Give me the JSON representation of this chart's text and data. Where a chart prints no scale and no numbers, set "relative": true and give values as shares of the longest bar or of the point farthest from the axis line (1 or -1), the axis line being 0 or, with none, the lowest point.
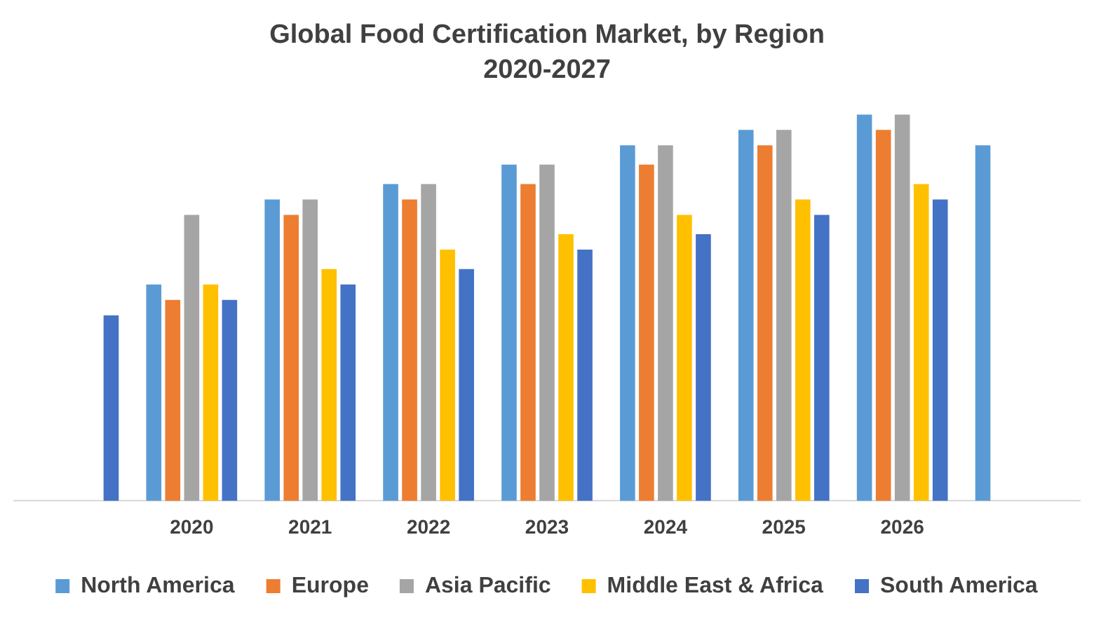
{
  "chart_data": {
    "type": "bar",
    "title": "Global Food Certification Market, by Region",
    "subtitle": "2020-2027",
    "relative": true,
    "categories": [
      null,
      "2020",
      "2021",
      "2022",
      "2023",
      "2024",
      "2025",
      "2026",
      null
    ],
    "grid": false,
    "legend": "bottom",
    "series": [
      {
        "name": "North America",
        "color": "#5b9bd5",
        "values": [
          null,
          0.56,
          0.78,
          0.82,
          0.87,
          0.92,
          0.96,
          1,
          0.92
        ]
      },
      {
        "name": "Europe",
        "color": "#ed7d31",
        "values": [
          null,
          0.52,
          0.74,
          0.78,
          0.82,
          0.87,
          0.92,
          0.96,
          null
        ]
      },
      {
        "name": "Asia Pacific",
        "color": "#a5a5a5",
        "values": [
          null,
          0.74,
          0.78,
          0.82,
          0.87,
          0.92,
          0.96,
          1,
          null
        ]
      },
      {
        "name": "Middle East & Africa",
        "color": "#ffc000",
        "values": [
          null,
          0.56,
          0.6,
          0.65,
          0.69,
          0.74,
          0.78,
          0.82,
          null
        ]
      },
      {
        "name": "South America",
        "color": "#4472c4",
        "values": [
          0.48,
          0.52,
          0.56,
          0.6,
          0.65,
          0.69,
          0.74,
          0.78,
          null
        ]
      }
    ]
  }
}
